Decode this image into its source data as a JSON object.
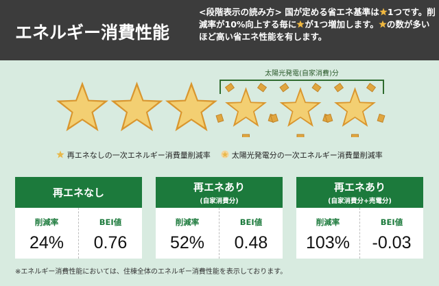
{
  "header": {
    "title": "エネルギー消費性能",
    "description_parts": [
      "<段階表示の読み方> 国が定める省エネ基準は",
      "1つです。削減率が10%向上する毎に",
      "が1つ増加します。",
      "の数が多いほど高い省エネ性能を有します。"
    ]
  },
  "rating": {
    "base_stars": 3,
    "solar_stars": 3,
    "solar_label": "太陽光発電(自家消費)分",
    "star_color": "#e8b84a"
  },
  "legend": {
    "base": "再エネなしの一次エネルギー消費量削減率",
    "solar": "太陽光発電分の一次エネルギー消費量削減率",
    "base_icon": "star-icon",
    "solar_icon": "sun-star-icon"
  },
  "cards": [
    {
      "title": "再エネなし",
      "subtitle": "",
      "rate_label": "削減率",
      "rate": "24%",
      "bei_label": "BEI値",
      "bei": "0.76"
    },
    {
      "title": "再エネあり",
      "subtitle": "(自家消費分)",
      "rate_label": "削減率",
      "rate": "52%",
      "bei_label": "BEI値",
      "bei": "0.48"
    },
    {
      "title": "再エネあり",
      "subtitle": "(自家消費分+売電分)",
      "rate_label": "削減率",
      "rate": "103%",
      "bei_label": "BEI値",
      "bei": "-0.03"
    }
  ],
  "footnote": "※エネルギー消費性能においては、住棟全体のエネルギー消費性能を表示しております。",
  "colors": {
    "header_bg": "#3c3c3c",
    "accent_green": "#1c7a3c",
    "page_bg": "#d8ebe0"
  }
}
